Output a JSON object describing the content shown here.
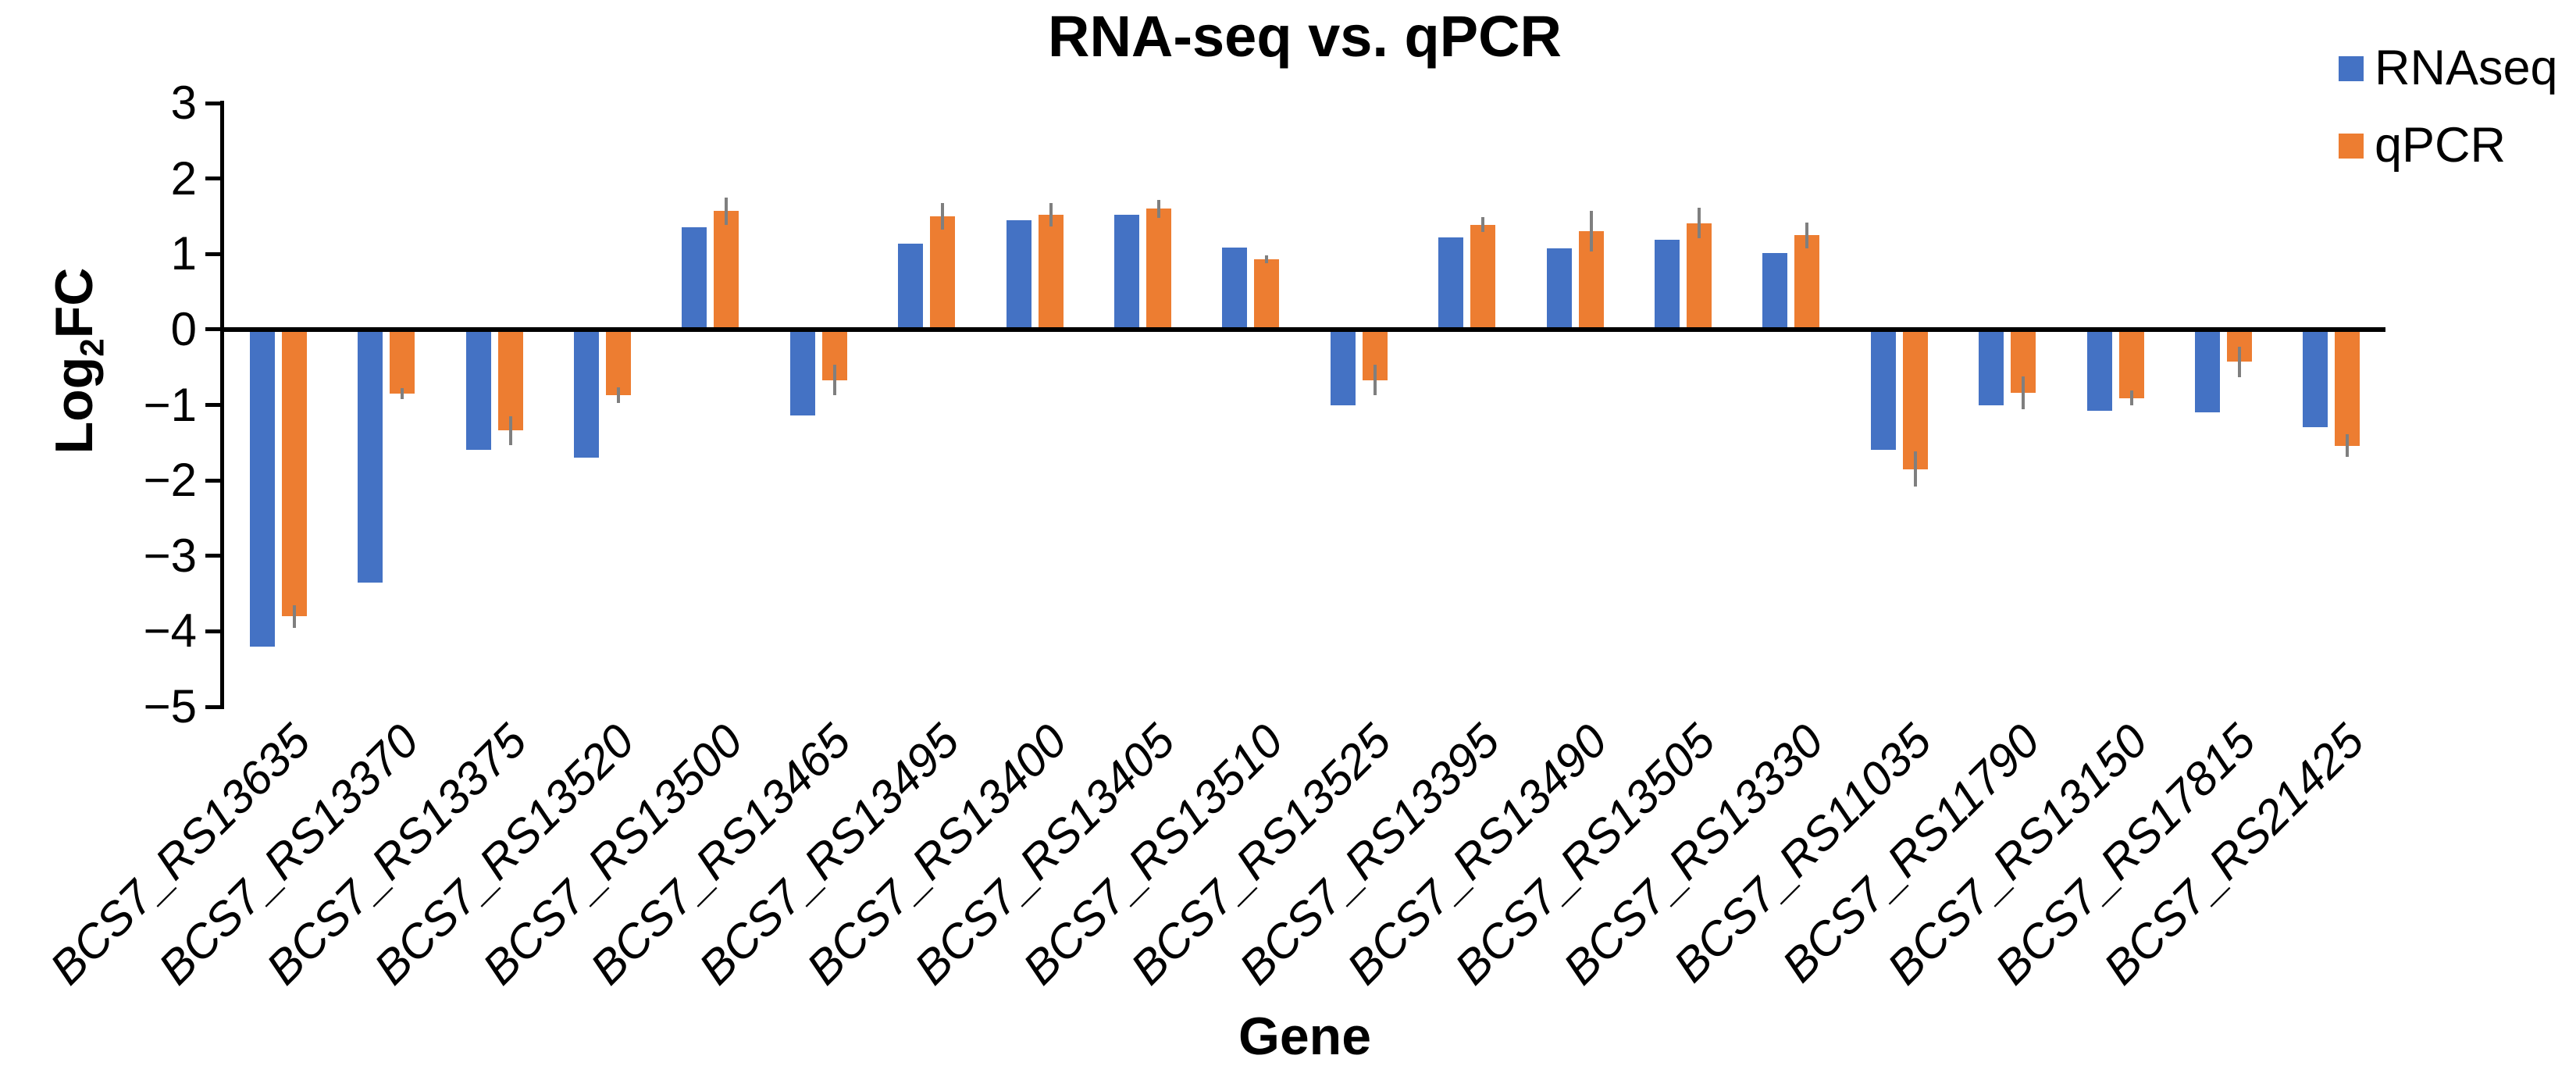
{
  "chart_data": {
    "type": "bar",
    "title": "RNA-seq vs. qPCR",
    "xlabel": "Gene",
    "ylabel": "Log2FC",
    "ylabel_parts": {
      "prefix": "Log",
      "sub": "2",
      "suffix": "FC"
    },
    "ylim": [
      -5,
      3
    ],
    "ytick_step": 1,
    "grid": false,
    "legend_position": "top-right",
    "categories": [
      "BCS7_RS13635",
      "BCS7_RS13370",
      "BCS7_RS13375",
      "BCS7_RS13520",
      "BCS7_RS13500",
      "BCS7_RS13465",
      "BCS7_RS13495",
      "BCS7_RS13400",
      "BCS7_RS13405",
      "BCS7_RS13510",
      "BCS7_RS13525",
      "BCS7_RS13395",
      "BCS7_RS13490",
      "BCS7_RS13505",
      "BCS7_RS13330",
      "BCS7_RS11035",
      "BCS7_RS11790",
      "BCS7_RS13150",
      "BCS7_RS17815",
      "BCS7_RS21425"
    ],
    "series": [
      {
        "name": "RNAseq",
        "color": "#4472C4",
        "values": [
          -4.2,
          -3.35,
          -1.6,
          -1.7,
          1.35,
          -1.14,
          1.14,
          1.45,
          1.52,
          1.09,
          -1.01,
          1.22,
          1.07,
          1.19,
          1.01,
          -1.6,
          -1.01,
          -1.08,
          -1.1,
          -1.29
        ]
      },
      {
        "name": "qPCR",
        "color": "#ED7D31",
        "values": [
          -3.8,
          -0.85,
          -1.34,
          -0.87,
          1.57,
          -0.67,
          1.5,
          1.52,
          1.6,
          0.93,
          -0.67,
          1.39,
          1.3,
          1.41,
          1.25,
          -1.85,
          -0.84,
          -0.91,
          -0.43,
          -1.54
        ],
        "error": [
          0.15,
          0.07,
          0.19,
          0.1,
          0.18,
          0.2,
          0.18,
          0.16,
          0.12,
          0.05,
          0.2,
          0.1,
          0.27,
          0.2,
          0.17,
          0.23,
          0.22,
          0.1,
          0.2,
          0.15
        ]
      }
    ],
    "error_bar_color": "#7F7F7F",
    "axis_color": "#000000"
  }
}
